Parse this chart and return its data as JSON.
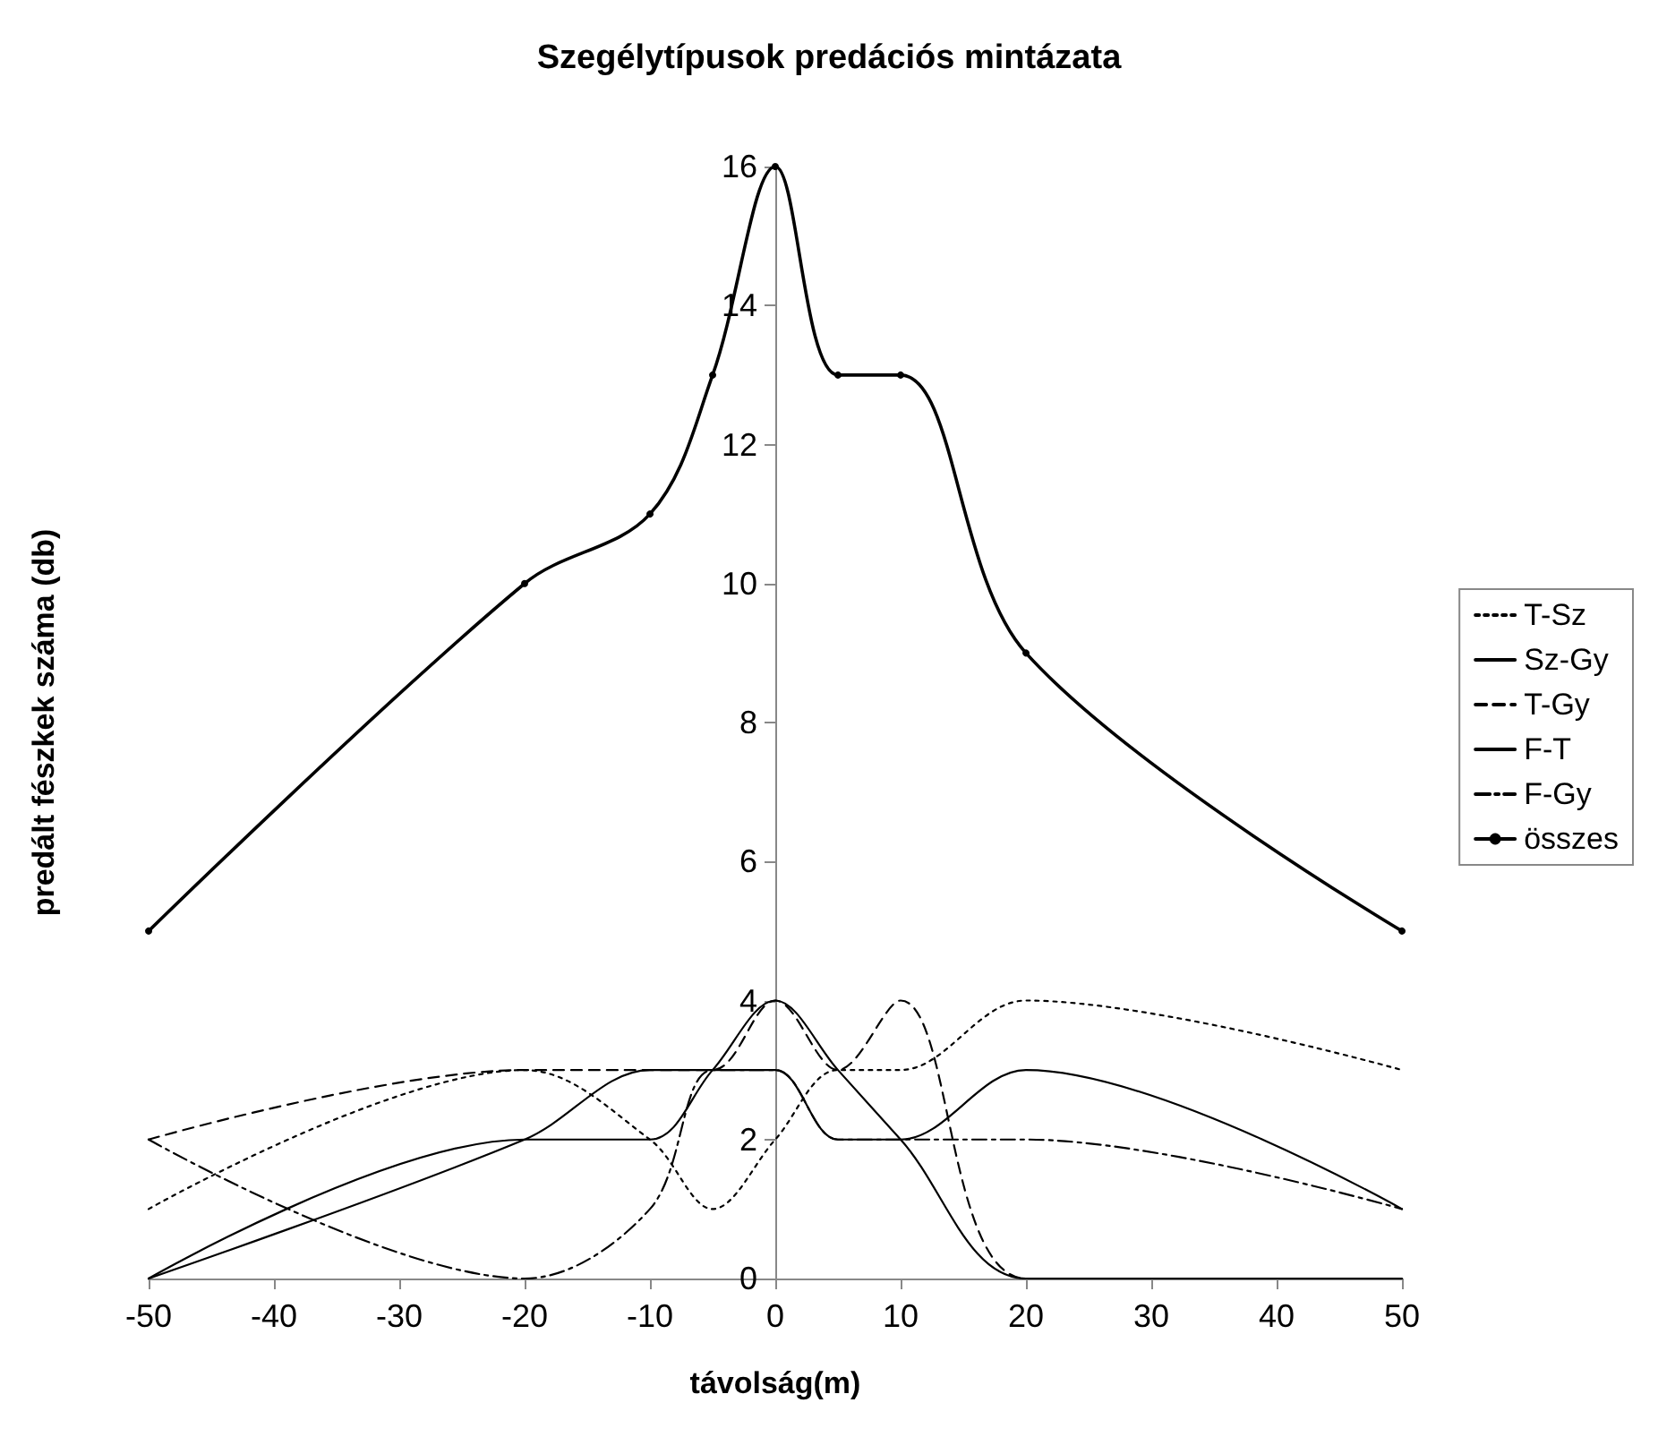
{
  "chart_data": {
    "type": "line",
    "title": "Szegélytípusok predációs mintázata",
    "xlabel": "távolság(m)",
    "ylabel": "predált fészkek száma (db)",
    "x": [
      -50,
      -20,
      -10,
      -5,
      0,
      5,
      10,
      20,
      50
    ],
    "series": [
      {
        "name": "T-Sz",
        "color": "#000000",
        "line_style": "dotted",
        "marker": "none",
        "values": [
          1,
          3,
          2,
          1,
          2,
          3,
          3,
          4,
          3
        ]
      },
      {
        "name": "Sz-Gy",
        "color": "#000000",
        "line_style": "solid",
        "marker": "none",
        "values": [
          0,
          2,
          3,
          3,
          3,
          2,
          2,
          3,
          1
        ]
      },
      {
        "name": "T-Gy",
        "color": "#000000",
        "line_style": "dashed",
        "marker": "none",
        "values": [
          2,
          3,
          3,
          3,
          4,
          3,
          4,
          0,
          0
        ]
      },
      {
        "name": "F-T",
        "color": "#000000",
        "line_style": "solid",
        "marker": "none",
        "values": [
          0,
          2,
          2,
          3,
          4,
          3,
          2,
          0,
          0
        ]
      },
      {
        "name": "F-Gy",
        "color": "#000000",
        "line_style": "dashdot",
        "marker": "none",
        "values": [
          2,
          0,
          1,
          3,
          3,
          2,
          2,
          2,
          1
        ]
      },
      {
        "name": "összes",
        "color": "#000000",
        "line_style": "solid",
        "marker": "circle",
        "values": [
          5,
          10,
          11,
          13,
          16,
          13,
          13,
          9,
          5
        ]
      }
    ],
    "xlim": [
      -50,
      50
    ],
    "xticks": [
      -50,
      -40,
      -30,
      -20,
      -10,
      0,
      10,
      20,
      30,
      40,
      50
    ],
    "ylim": [
      0,
      16
    ],
    "yticks": [
      0,
      2,
      4,
      6,
      8,
      10,
      12,
      14,
      16
    ],
    "grid": false,
    "legend": "right"
  }
}
